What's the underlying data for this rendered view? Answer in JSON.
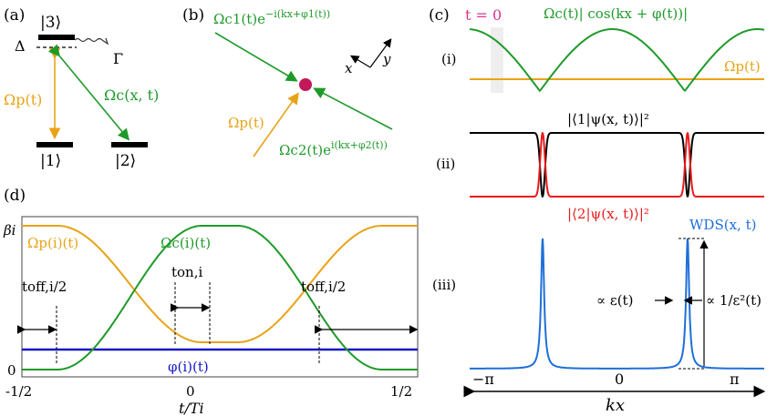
{
  "colors": {
    "green": "#1f9a2a",
    "orange": "#e8a317",
    "red": "#e8191a",
    "black": "#000000",
    "blue": "#1e6fd8",
    "deepblue": "#1515c8",
    "magenta": "#c2185b",
    "pink": "#e0338a",
    "grey": "#888888"
  },
  "panel_a": {
    "tag": "(a)",
    "state3": "|3⟩",
    "state1": "|1⟩",
    "state2": "|2⟩",
    "delta": "Δ",
    "gamma": "Γ",
    "omega_p": "Ωp(t)",
    "omega_c": "Ωc(x, t)"
  },
  "panel_b": {
    "tag": "(b)",
    "omega_c1_base": "Ωc1(t)e",
    "omega_c1_exp": "−i(kx+φ1(t))",
    "omega_c2_base": "Ωc2(t)e",
    "omega_c2_exp": "i(kx+φ2(t))",
    "omega_p": "Ωp(t)",
    "axis_x": "x",
    "axis_y": "y"
  },
  "panel_c": {
    "tag": "(c)",
    "t_label": "t = 0",
    "row_i": "(i)",
    "row_ii": "(ii)",
    "row_iii": "(iii)",
    "omega_c_label": "Ωc(t)| cos(kx + φ(t))|",
    "omega_p_label": "Ωp(t)",
    "psi1_label": "|⟨1|ψ(x, t)⟩|²",
    "psi2_label": "|⟨2|ψ(x, t)⟩|²",
    "wds_label": "WDS(x, t)",
    "width_label": "∝ ε(t)",
    "height_label": "∝ 1/ε²(t)",
    "tick_left": "−π",
    "tick_mid": "0",
    "tick_right": "π",
    "axis_label": "kx"
  },
  "panel_d": {
    "tag": "(d)",
    "y_top": "βi",
    "y_zero": "0",
    "omega_p_label": "Ωp(i)(t)",
    "omega_c_label": "Ωc(i)(t)",
    "phi_label": "φ(i)(t)",
    "t_on": "ton,i",
    "t_off_left": "toff,i/2",
    "t_off_right": "toff,i/2",
    "x_left": "-1/2",
    "x_mid": "0",
    "x_right": "1/2",
    "x_label": "t/Ti"
  }
}
